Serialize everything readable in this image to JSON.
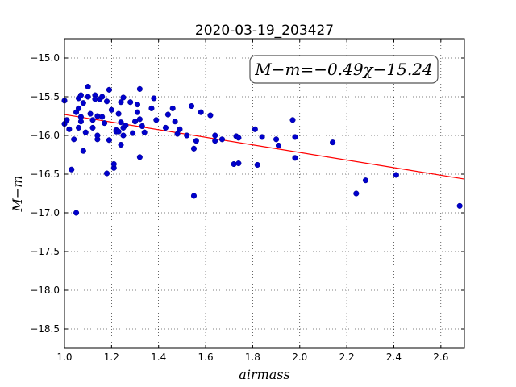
{
  "chart_data": {
    "type": "scatter",
    "title": "2020-03-19_203427",
    "xlabel": "airmass",
    "ylabel": "M−m",
    "xlim": [
      1.0,
      2.7
    ],
    "ylim": [
      -14.75,
      -18.75
    ],
    "y_inverted": true,
    "grid": true,
    "x_ticks": [
      "1.0",
      "1.2",
      "1.4",
      "1.6",
      "1.8",
      "2.0",
      "2.2",
      "2.4",
      "2.6"
    ],
    "y_ticks": [
      "−15.0",
      "−15.5",
      "−16.0",
      "−16.5",
      "−17.0",
      "−17.5",
      "−18.0",
      "−18.5"
    ],
    "annotation": "M−m=−0.49χ−15.24",
    "annotation_position": "top-right",
    "fit": {
      "slope": -0.49,
      "intercept": -15.24,
      "color": "#ff0000"
    },
    "point_color": "#0000cc",
    "points": [
      [
        1.0,
        -15.55
      ],
      [
        1.0,
        -15.85
      ],
      [
        1.01,
        -15.8
      ],
      [
        1.02,
        -15.92
      ],
      [
        1.03,
        -16.44
      ],
      [
        1.04,
        -16.05
      ],
      [
        1.05,
        -17.0
      ],
      [
        1.05,
        -15.7
      ],
      [
        1.06,
        -15.9
      ],
      [
        1.06,
        -15.65
      ],
      [
        1.06,
        -15.52
      ],
      [
        1.07,
        -15.48
      ],
      [
        1.07,
        -15.76
      ],
      [
        1.07,
        -15.82
      ],
      [
        1.08,
        -16.2
      ],
      [
        1.08,
        -15.58
      ],
      [
        1.09,
        -15.96
      ],
      [
        1.1,
        -15.37
      ],
      [
        1.1,
        -15.5
      ],
      [
        1.11,
        -15.72
      ],
      [
        1.12,
        -15.8
      ],
      [
        1.12,
        -15.9
      ],
      [
        1.13,
        -15.48
      ],
      [
        1.13,
        -15.53
      ],
      [
        1.14,
        -16.05
      ],
      [
        1.14,
        -16.0
      ],
      [
        1.14,
        -15.75
      ],
      [
        1.15,
        -15.53
      ],
      [
        1.16,
        -15.76
      ],
      [
        1.16,
        -15.5
      ],
      [
        1.17,
        -15.84
      ],
      [
        1.18,
        -16.49
      ],
      [
        1.18,
        -15.56
      ],
      [
        1.19,
        -15.41
      ],
      [
        1.19,
        -16.06
      ],
      [
        1.2,
        -15.67
      ],
      [
        1.21,
        -16.42
      ],
      [
        1.21,
        -16.37
      ],
      [
        1.22,
        -15.93
      ],
      [
        1.22,
        -15.95
      ],
      [
        1.23,
        -15.72
      ],
      [
        1.23,
        -15.95
      ],
      [
        1.24,
        -15.57
      ],
      [
        1.24,
        -16.12
      ],
      [
        1.24,
        -15.83
      ],
      [
        1.25,
        -16.0
      ],
      [
        1.25,
        -15.9
      ],
      [
        1.25,
        -15.51
      ],
      [
        1.26,
        -15.87
      ],
      [
        1.28,
        -15.57
      ],
      [
        1.29,
        -15.97
      ],
      [
        1.3,
        -15.82
      ],
      [
        1.31,
        -15.6
      ],
      [
        1.31,
        -15.7
      ],
      [
        1.32,
        -16.28
      ],
      [
        1.32,
        -15.79
      ],
      [
        1.32,
        -15.4
      ],
      [
        1.33,
        -15.88
      ],
      [
        1.34,
        -15.96
      ],
      [
        1.37,
        -15.65
      ],
      [
        1.38,
        -15.52
      ],
      [
        1.39,
        -15.8
      ],
      [
        1.43,
        -15.9
      ],
      [
        1.44,
        -15.73
      ],
      [
        1.46,
        -15.65
      ],
      [
        1.47,
        -15.82
      ],
      [
        1.48,
        -15.98
      ],
      [
        1.49,
        -15.92
      ],
      [
        1.52,
        -16.0
      ],
      [
        1.54,
        -15.62
      ],
      [
        1.55,
        -16.78
      ],
      [
        1.55,
        -16.17
      ],
      [
        1.56,
        -16.07
      ],
      [
        1.58,
        -15.7
      ],
      [
        1.62,
        -15.74
      ],
      [
        1.64,
        -16.07
      ],
      [
        1.64,
        -16.0
      ],
      [
        1.67,
        -16.05
      ],
      [
        1.72,
        -16.37
      ],
      [
        1.73,
        -16.01
      ],
      [
        1.74,
        -16.03
      ],
      [
        1.74,
        -16.36
      ],
      [
        1.81,
        -15.92
      ],
      [
        1.82,
        -16.38
      ],
      [
        1.84,
        -16.02
      ],
      [
        1.9,
        -16.05
      ],
      [
        1.91,
        -16.13
      ],
      [
        1.97,
        -15.8
      ],
      [
        1.98,
        -16.02
      ],
      [
        1.98,
        -16.29
      ],
      [
        2.14,
        -16.09
      ],
      [
        2.24,
        -16.75
      ],
      [
        2.28,
        -16.58
      ],
      [
        2.41,
        -16.51
      ],
      [
        2.68,
        -16.91
      ]
    ]
  }
}
